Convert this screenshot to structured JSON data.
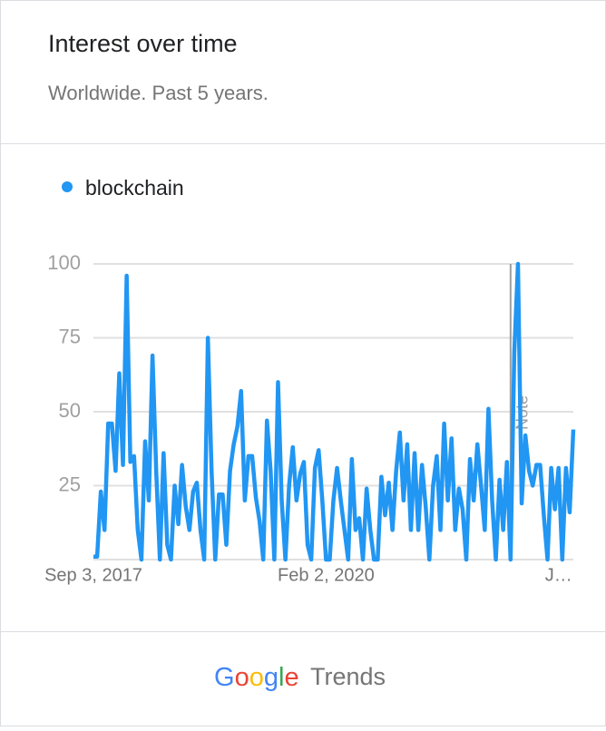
{
  "chart_data": {
    "type": "line",
    "title": "Interest over time",
    "subtitle": "Worldwide. Past 5 years.",
    "annotation": "Note",
    "categories": [
      "Sep 3, 2017",
      null,
      null,
      null,
      null,
      null,
      null,
      null,
      null,
      null,
      null,
      null,
      null,
      null,
      null,
      null,
      null,
      null,
      null,
      null,
      null,
      null,
      null,
      null,
      null,
      null,
      null,
      null,
      null,
      null,
      null,
      null,
      null,
      null,
      null,
      null,
      null,
      null,
      null,
      null,
      null,
      null,
      null,
      null,
      null,
      null,
      null,
      null,
      null,
      null,
      null,
      null,
      null,
      null,
      null,
      null,
      null,
      null,
      null,
      null,
      null,
      null,
      null,
      "Feb 2, 2020",
      null,
      null,
      null,
      null,
      null,
      null,
      null,
      null,
      null,
      null,
      null,
      null,
      null,
      null,
      null,
      null,
      null,
      null,
      null,
      null,
      null,
      null,
      null,
      null,
      null,
      null,
      null,
      null,
      null,
      null,
      null,
      null,
      null,
      null,
      null,
      null,
      null,
      null,
      null,
      null,
      null,
      null,
      null,
      null,
      null,
      null,
      null,
      null,
      null,
      null,
      null,
      null,
      null,
      null,
      null,
      null,
      null,
      null,
      null,
      null,
      null,
      null,
      "J…",
      null,
      null,
      null,
      null
    ],
    "series": [
      {
        "name": "blockchain",
        "color": "#2196f3",
        "values": [
          1,
          1,
          23,
          10,
          46,
          46,
          30,
          63,
          32,
          96,
          33,
          35,
          10,
          0,
          40,
          20,
          69,
          30,
          0,
          36,
          5,
          0,
          25,
          12,
          32,
          18,
          10,
          23,
          26,
          10,
          0,
          75,
          30,
          0,
          22,
          22,
          5,
          30,
          39,
          45,
          57,
          20,
          35,
          35,
          21,
          13,
          0,
          47,
          30,
          0,
          60,
          20,
          0,
          25,
          38,
          20,
          29,
          33,
          5,
          0,
          31,
          37,
          20,
          0,
          0,
          20,
          31,
          20,
          10,
          0,
          34,
          10,
          14,
          0,
          24,
          10,
          0,
          0,
          28,
          15,
          26,
          10,
          30,
          43,
          20,
          39,
          10,
          36,
          10,
          32,
          18,
          0,
          25,
          35,
          10,
          46,
          20,
          41,
          10,
          24,
          17,
          0,
          34,
          20,
          39,
          25,
          10,
          51,
          20,
          0,
          27,
          10,
          33,
          0,
          70,
          100,
          19,
          42,
          30,
          25,
          32,
          32,
          15,
          0,
          31,
          17,
          31,
          0,
          31,
          16,
          44
        ]
      }
    ],
    "ylim": [
      0,
      100
    ],
    "yticks": [
      25,
      50,
      75,
      100
    ],
    "grid": true
  },
  "footer": {
    "brand": "Google",
    "product": "Trends"
  }
}
